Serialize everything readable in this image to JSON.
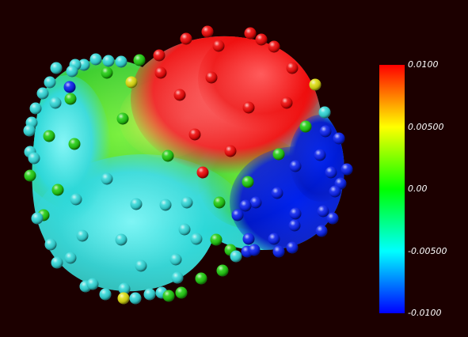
{
  "colorbar": {
    "ticks": [
      {
        "label": "0.0100",
        "value": 0.01
      },
      {
        "label": "0.00500",
        "value": 0.005
      },
      {
        "label": "0.00",
        "value": 0.0
      },
      {
        "label": "-0.00500",
        "value": -0.005
      },
      {
        "label": "-0.0100",
        "value": -0.01
      }
    ],
    "range": [
      -0.01,
      0.01
    ],
    "colormap": [
      "#0000ff",
      "#00ffff",
      "#00ff00",
      "#ffff00",
      "#ff0000"
    ]
  },
  "colors": {
    "background": "#1c0000",
    "surface_red": "#ff1a1a",
    "surface_green": "#44dd22",
    "surface_cyan": "#33dddd",
    "surface_blue": "#0022dd"
  }
}
